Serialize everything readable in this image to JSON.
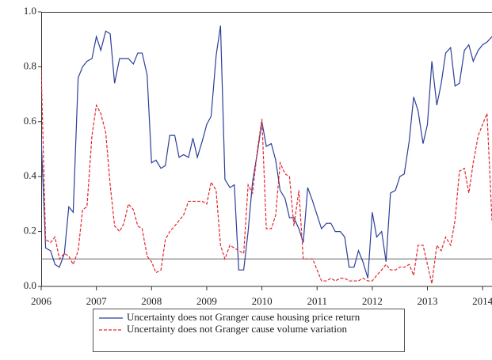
{
  "chart_data": {
    "type": "line",
    "x": [
      2006.0,
      2006.08,
      2006.17,
      2006.25,
      2006.33,
      2006.42,
      2006.5,
      2006.58,
      2006.67,
      2006.75,
      2006.83,
      2006.92,
      2007.0,
      2007.08,
      2007.17,
      2007.25,
      2007.33,
      2007.42,
      2007.5,
      2007.58,
      2007.67,
      2007.75,
      2007.83,
      2007.92,
      2008.0,
      2008.08,
      2008.17,
      2008.25,
      2008.33,
      2008.42,
      2008.5,
      2008.58,
      2008.67,
      2008.75,
      2008.83,
      2008.92,
      2009.0,
      2009.08,
      2009.17,
      2009.25,
      2009.33,
      2009.42,
      2009.5,
      2009.58,
      2009.67,
      2009.75,
      2009.83,
      2009.92,
      2010.0,
      2010.08,
      2010.17,
      2010.25,
      2010.33,
      2010.42,
      2010.5,
      2010.58,
      2010.67,
      2010.75,
      2010.83,
      2010.92,
      2011.0,
      2011.08,
      2011.17,
      2011.25,
      2011.33,
      2011.42,
      2011.5,
      2011.58,
      2011.67,
      2011.75,
      2011.83,
      2011.92,
      2012.0,
      2012.08,
      2012.17,
      2012.25,
      2012.33,
      2012.42,
      2012.5,
      2012.58,
      2012.67,
      2012.75,
      2012.83,
      2012.92,
      2013.0,
      2013.08,
      2013.17,
      2013.25,
      2013.33,
      2013.42,
      2013.5,
      2013.58,
      2013.67,
      2013.75,
      2013.83,
      2013.92,
      2014.0,
      2014.08,
      2014.17
    ],
    "series": [
      {
        "name": "Uncertainty does not Granger cause housing price return",
        "color": "#2b3f99",
        "dash": false,
        "values": [
          0.54,
          0.14,
          0.13,
          0.08,
          0.07,
          0.12,
          0.29,
          0.27,
          0.76,
          0.8,
          0.82,
          0.83,
          0.91,
          0.86,
          0.93,
          0.92,
          0.74,
          0.83,
          0.83,
          0.83,
          0.81,
          0.85,
          0.85,
          0.77,
          0.45,
          0.46,
          0.43,
          0.44,
          0.55,
          0.55,
          0.47,
          0.48,
          0.47,
          0.54,
          0.47,
          0.53,
          0.59,
          0.62,
          0.84,
          0.95,
          0.39,
          0.36,
          0.37,
          0.06,
          0.06,
          0.2,
          0.38,
          0.49,
          0.6,
          0.51,
          0.52,
          0.46,
          0.35,
          0.32,
          0.25,
          0.25,
          0.21,
          0.16,
          0.36,
          0.31,
          0.26,
          0.21,
          0.23,
          0.23,
          0.2,
          0.2,
          0.18,
          0.07,
          0.07,
          0.13,
          0.09,
          0.03,
          0.27,
          0.18,
          0.2,
          0.09,
          0.34,
          0.35,
          0.4,
          0.41,
          0.53,
          0.69,
          0.64,
          0.52,
          0.59,
          0.82,
          0.66,
          0.74,
          0.85,
          0.87,
          0.73,
          0.74,
          0.86,
          0.88,
          0.82,
          0.86,
          0.88,
          0.89,
          0.91
        ]
      },
      {
        "name": "Uncertainty does not Granger cause volume variation",
        "color": "#e3262a",
        "dash": true,
        "values": [
          0.79,
          0.17,
          0.16,
          0.18,
          0.1,
          0.12,
          0.11,
          0.08,
          0.13,
          0.28,
          0.29,
          0.55,
          0.66,
          0.63,
          0.56,
          0.37,
          0.22,
          0.2,
          0.23,
          0.3,
          0.28,
          0.22,
          0.21,
          0.11,
          0.09,
          0.05,
          0.06,
          0.17,
          0.2,
          0.22,
          0.24,
          0.26,
          0.31,
          0.31,
          0.31,
          0.31,
          0.3,
          0.38,
          0.35,
          0.15,
          0.1,
          0.15,
          0.14,
          0.13,
          0.12,
          0.37,
          0.34,
          0.5,
          0.61,
          0.21,
          0.21,
          0.26,
          0.45,
          0.41,
          0.4,
          0.22,
          0.35,
          0.1,
          0.1,
          0.1,
          0.06,
          0.02,
          0.02,
          0.03,
          0.02,
          0.03,
          0.03,
          0.02,
          0.02,
          0.02,
          0.03,
          0.02,
          0.02,
          0.04,
          0.06,
          0.08,
          0.06,
          0.06,
          0.07,
          0.07,
          0.08,
          0.04,
          0.15,
          0.15,
          0.08,
          0.01,
          0.15,
          0.13,
          0.18,
          0.15,
          0.24,
          0.42,
          0.43,
          0.34,
          0.45,
          0.55,
          0.59,
          0.63,
          0.24
        ]
      }
    ],
    "reference_line": 0.1,
    "xlim": [
      2006,
      2014.17
    ],
    "xticks": [
      2006,
      2007,
      2008,
      2009,
      2010,
      2011,
      2012,
      2013,
      2014
    ],
    "ylim": [
      0,
      1
    ],
    "yticks": [
      {
        "value": 0,
        "label": "0.0"
      },
      0.2,
      0.4,
      0.6,
      0.8,
      {
        "value": 1,
        "label": "1.0"
      }
    ],
    "legend": "bottom"
  }
}
